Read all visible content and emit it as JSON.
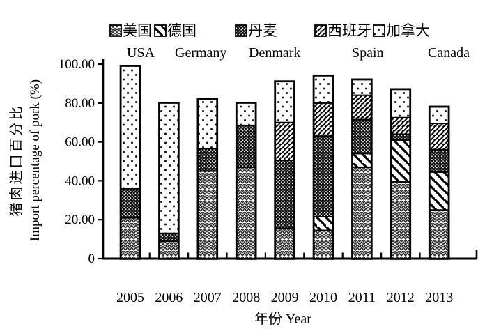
{
  "figure": {
    "background": "#ffffff",
    "ink_color": "#000000"
  },
  "chart_data": {
    "type": "bar",
    "stacked": true,
    "title": "",
    "categories": [
      "2005",
      "2006",
      "2007",
      "2008",
      "2009",
      "2010",
      "2011",
      "2012",
      "2013"
    ],
    "series": [
      {
        "name_zh": "美国",
        "name_en": "USA",
        "pattern": "herringbone",
        "values": [
          21,
          9,
          45,
          47,
          15.5,
          14.5,
          47,
          39.5,
          25
        ]
      },
      {
        "name_zh": "德国",
        "name_en": "Germany",
        "pattern": "wide-backslash",
        "values": [
          0,
          0,
          0,
          0,
          0,
          7,
          7,
          21.5,
          19.5
        ]
      },
      {
        "name_zh": "丹麦",
        "name_en": "Denmark",
        "pattern": "dense-checker",
        "values": [
          15,
          4,
          11.5,
          21.5,
          35,
          41.5,
          17.5,
          3,
          11.5
        ]
      },
      {
        "name_zh": "西班牙",
        "name_en": "Spain",
        "pattern": "diagonal-stripes",
        "values": [
          0,
          0,
          0,
          0,
          19.5,
          17,
          12.5,
          8.5,
          13.5
        ]
      },
      {
        "name_zh": "加拿大",
        "name_en": "Canada",
        "pattern": "sparse-dots",
        "values": [
          63,
          67,
          25.5,
          11.5,
          21,
          14,
          8,
          14.5,
          8.5
        ]
      }
    ],
    "stack_totals": [
      99,
      80,
      82,
      80,
      91,
      94,
      92,
      87,
      78
    ],
    "ylabel_zh": "猪肉进口百分比",
    "ylabel_en": "Import percentage of pork (%)",
    "xlabel": "年份 Year",
    "ytick_labels": [
      "100.00",
      "80.00",
      "60.00",
      "40.00",
      "20.00",
      "0"
    ],
    "ytick_values": [
      100,
      80,
      60,
      40,
      20,
      0
    ],
    "ylim": [
      0,
      100
    ],
    "grid": false,
    "legend_position": "top"
  }
}
